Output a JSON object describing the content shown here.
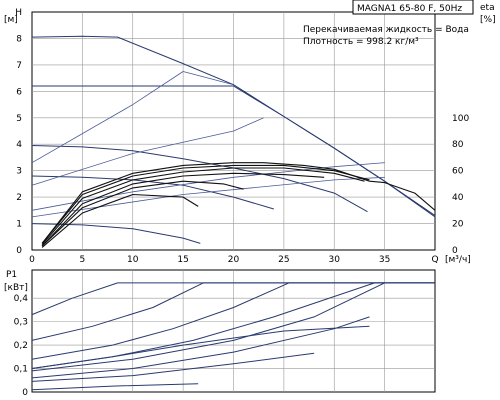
{
  "chart_data": [
    {
      "type": "line",
      "panel": "head",
      "ylabel": "H",
      "yunit": "[м]",
      "xlabel": "Q",
      "xunit": "[м³/ч]",
      "y2label": "eta",
      "y2unit": "[%]",
      "title": "MAGNA1 65-80 F, 50Hz",
      "notes": [
        "Перекачиваемая жидкость = Вода",
        "Плотность = 998.2 кг/м³"
      ],
      "xlim": [
        0,
        40
      ],
      "ylim": [
        0,
        9
      ],
      "xticks": [
        "0",
        "5",
        "10",
        "15",
        "20",
        "25",
        "30",
        "35",
        "Q"
      ],
      "yticks": [
        "0",
        "1",
        "2",
        "3",
        "4",
        "5",
        "6",
        "7",
        "8",
        "H"
      ],
      "y2lim": [
        0,
        180
      ],
      "y2ticks": [
        "0",
        "20",
        "40",
        "60",
        "80",
        "100"
      ],
      "grid": true,
      "head_curves": [
        [
          [
            0,
            8.05
          ],
          [
            5,
            8.08
          ],
          [
            8.5,
            8.05
          ],
          [
            15,
            7.05
          ],
          [
            20,
            6.25
          ],
          [
            25,
            5.05
          ],
          [
            30,
            3.85
          ],
          [
            35,
            2.6
          ],
          [
            40,
            1.25
          ]
        ],
        [
          [
            0,
            6.2
          ],
          [
            8.5,
            6.2
          ],
          [
            17,
            6.2
          ],
          [
            20,
            6.2
          ],
          [
            25,
            5.05
          ],
          [
            30,
            3.85
          ],
          [
            35,
            2.6
          ],
          [
            40,
            1.3
          ]
        ],
        [
          [
            0,
            3.95
          ],
          [
            5,
            3.9
          ],
          [
            10,
            3.75
          ],
          [
            15,
            3.45
          ],
          [
            20,
            3.1
          ],
          [
            25,
            2.7
          ],
          [
            30,
            2.15
          ],
          [
            33.3,
            1.45
          ]
        ],
        [
          [
            0,
            2.8
          ],
          [
            5,
            2.75
          ],
          [
            10,
            2.65
          ],
          [
            15,
            2.45
          ],
          [
            20,
            2.0
          ],
          [
            24,
            1.55
          ]
        ],
        [
          [
            0,
            1.0
          ],
          [
            5,
            0.95
          ],
          [
            10,
            0.8
          ],
          [
            15,
            0.45
          ],
          [
            16.7,
            0.25
          ]
        ]
      ],
      "system_curves": [
        [
          [
            0,
            3.3
          ],
          [
            5,
            4.4
          ],
          [
            10,
            5.5
          ],
          [
            15,
            6.75
          ],
          [
            20,
            6.25
          ]
        ],
        [
          [
            0,
            2.45
          ],
          [
            10,
            3.65
          ],
          [
            20,
            4.5
          ],
          [
            23,
            5.0
          ]
        ],
        [
          [
            0,
            1.5
          ],
          [
            10,
            2.2
          ],
          [
            20,
            2.75
          ],
          [
            30,
            3.15
          ],
          [
            35,
            3.3
          ]
        ],
        [
          [
            0,
            1.25
          ],
          [
            15,
            2.1
          ],
          [
            30,
            2.65
          ],
          [
            35,
            2.75
          ]
        ]
      ],
      "efficiency_curves": [
        [
          [
            1,
            5
          ],
          [
            5,
            44
          ],
          [
            10,
            58
          ],
          [
            15,
            64
          ],
          [
            20,
            66
          ],
          [
            23,
            66
          ],
          [
            27,
            64
          ],
          [
            30,
            61
          ],
          [
            33.5,
            52
          ],
          [
            35,
            51
          ],
          [
            38,
            43
          ],
          [
            40,
            30
          ]
        ],
        [
          [
            1,
            5
          ],
          [
            5,
            42
          ],
          [
            10,
            56
          ],
          [
            15,
            62
          ],
          [
            20,
            64
          ],
          [
            25,
            64
          ],
          [
            30,
            60
          ],
          [
            33.5,
            53
          ]
        ],
        [
          [
            1,
            4
          ],
          [
            5,
            39
          ],
          [
            10,
            53
          ],
          [
            15,
            59
          ],
          [
            20,
            62
          ],
          [
            25,
            62
          ],
          [
            30,
            58
          ],
          [
            33,
            52
          ]
        ],
        [
          [
            1,
            3
          ],
          [
            5,
            35
          ],
          [
            10,
            50
          ],
          [
            15,
            56
          ],
          [
            20,
            58
          ],
          [
            25,
            57
          ],
          [
            29,
            55
          ]
        ],
        [
          [
            1,
            3
          ],
          [
            5,
            32
          ],
          [
            10,
            47
          ],
          [
            15,
            52
          ],
          [
            19,
            50
          ],
          [
            21,
            46
          ]
        ],
        [
          [
            1,
            2
          ],
          [
            5,
            28
          ],
          [
            10,
            42
          ],
          [
            15,
            40
          ],
          [
            16.5,
            33
          ]
        ]
      ]
    },
    {
      "type": "line",
      "panel": "power",
      "ylabel": "P1",
      "yunit": "[кВт]",
      "xlim": [
        0,
        40
      ],
      "ylim": [
        0,
        0.52
      ],
      "yticks": [
        "0",
        "0,1",
        "0,2",
        "0,3",
        "0,4"
      ],
      "grid": true,
      "power_curves": [
        [
          [
            0,
            0.33
          ],
          [
            4,
            0.4
          ],
          [
            8.5,
            0.465
          ],
          [
            40,
            0.465
          ]
        ],
        [
          [
            0,
            0.22
          ],
          [
            6,
            0.28
          ],
          [
            12,
            0.36
          ],
          [
            17,
            0.465
          ],
          [
            40,
            0.465
          ]
        ],
        [
          [
            0,
            0.14
          ],
          [
            8,
            0.2
          ],
          [
            14,
            0.27
          ],
          [
            20,
            0.36
          ],
          [
            25.5,
            0.465
          ],
          [
            40,
            0.465
          ]
        ],
        [
          [
            0,
            0.1
          ],
          [
            8,
            0.15
          ],
          [
            16,
            0.22
          ],
          [
            24,
            0.32
          ],
          [
            34,
            0.465
          ],
          [
            40,
            0.465
          ]
        ],
        [
          [
            0,
            0.09
          ],
          [
            10,
            0.14
          ],
          [
            20,
            0.22
          ],
          [
            28,
            0.32
          ],
          [
            35,
            0.465
          ]
        ],
        [
          [
            0,
            0.06
          ],
          [
            10,
            0.1
          ],
          [
            20,
            0.17
          ],
          [
            30,
            0.27
          ],
          [
            33.5,
            0.32
          ]
        ],
        [
          [
            0,
            0.045
          ],
          [
            10,
            0.07
          ],
          [
            20,
            0.12
          ],
          [
            28,
            0.165
          ]
        ],
        [
          [
            0,
            0.1
          ],
          [
            8,
            0.15
          ],
          [
            15,
            0.2
          ],
          [
            25,
            0.26
          ],
          [
            33.5,
            0.28
          ]
        ],
        [
          [
            0,
            0.01
          ],
          [
            8,
            0.025
          ],
          [
            16.5,
            0.035
          ]
        ]
      ]
    }
  ]
}
